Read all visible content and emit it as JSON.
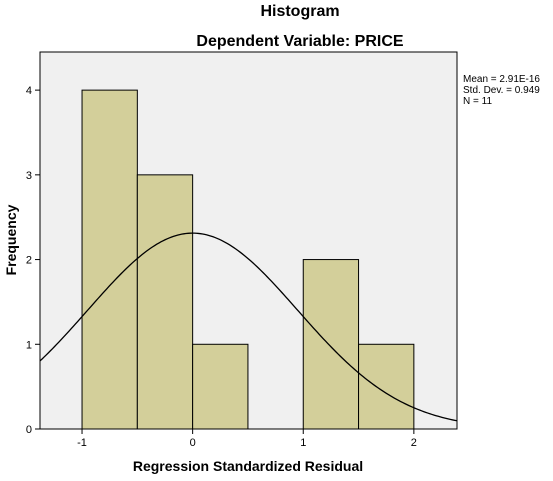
{
  "chart_data": {
    "type": "bar",
    "title": "Histogram",
    "subtitle": "Dependent Variable: PRICE",
    "xlabel": "Regression Standardized Residual",
    "ylabel": "Frequency",
    "bins": [
      {
        "from": -1.0,
        "to": -0.5,
        "count": 4
      },
      {
        "from": -0.5,
        "to": 0.0,
        "count": 3
      },
      {
        "from": 0.0,
        "to": 0.5,
        "count": 1
      },
      {
        "from": 0.5,
        "to": 1.0,
        "count": 0
      },
      {
        "from": 1.0,
        "to": 1.5,
        "count": 2
      },
      {
        "from": 1.5,
        "to": 2.0,
        "count": 1
      }
    ],
    "xlim": [
      -1.38,
      2.39
    ],
    "ylim": [
      0,
      4.45
    ],
    "xticks": [
      -1,
      0,
      1,
      2
    ],
    "yticks": [
      0,
      1,
      2,
      3,
      4
    ],
    "normal_curve": {
      "mean": 0.0,
      "std": 0.949,
      "n": 11,
      "bin_width": 0.5
    },
    "stats": {
      "mean": "Mean = 2.91E-16",
      "std": "Std. Dev. = 0.949",
      "n": "N = 11"
    },
    "colors": {
      "plot_bg": "#f0f0f0",
      "bar_fill": "#d3cf9a",
      "bar_stroke": "#000000",
      "curve": "#000000"
    }
  }
}
